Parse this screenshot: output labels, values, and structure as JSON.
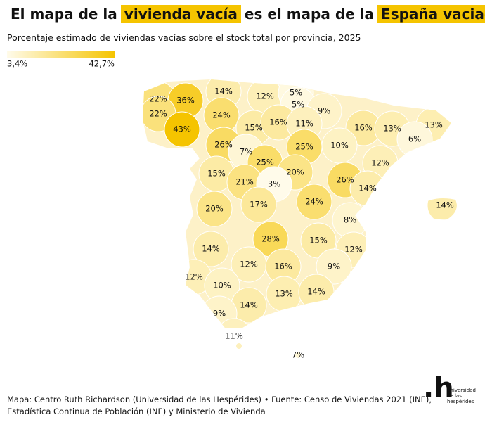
{
  "chart_data": {
    "type": "choropleth",
    "title": {
      "parts": [
        "El mapa de la",
        "vivienda vacía",
        "es el mapa de la",
        "España vaciada"
      ],
      "highlighted": [
        1,
        3
      ]
    },
    "subtitle": "Porcentaje estimado de viviendas vacías sobre el stock total por provincia, 2025",
    "colorbar": {
      "range": [
        {
          "value": 3.4,
          "label": "3,4%"
        },
        {
          "value": 42.7,
          "label": "42,7%"
        }
      ],
      "colors": [
        "#fffbea",
        "#f5c400"
      ]
    },
    "values": [
      22,
      36,
      14,
      12,
      5,
      22,
      5,
      9,
      24,
      43,
      15,
      16,
      11,
      16,
      13,
      13,
      6,
      26,
      7,
      25,
      10,
      25,
      12,
      15,
      20,
      21,
      3,
      26,
      14,
      17,
      24,
      20,
      14,
      8,
      28,
      15,
      14,
      12,
      12,
      16,
      9,
      12,
      10,
      13,
      14,
      14,
      9,
      11,
      7
    ],
    "value_labels": [
      "22%",
      "36%",
      "14%",
      "12%",
      "5%",
      "22%",
      "5%",
      "9%",
      "24%",
      "43%",
      "15%",
      "16%",
      "11%",
      "16%",
      "13%",
      "13%",
      "6%",
      "26%",
      "7%",
      "25%",
      "10%",
      "25%",
      "12%",
      "15%",
      "20%",
      "21%",
      "3%",
      "26%",
      "14%",
      "17%",
      "24%",
      "20%",
      "14%",
      "8%",
      "28%",
      "15%",
      "14%",
      "12%",
      "12%",
      "16%",
      "9%",
      "12%",
      "10%",
      "13%",
      "14%",
      "14%",
      "9%",
      "11%",
      "7%"
    ],
    "source": [
      "Mapa: Centro Ruth Richardson (Universidad de las Hespérides) • Fuente: Censo de Viviendas 2021 (INE),",
      "Estadística Continua de Población (INE) y Ministerio de Vivienda"
    ],
    "logo": {
      "mark": ".h",
      "text": [
        "universidad",
        "de las",
        "hespérides"
      ]
    }
  }
}
